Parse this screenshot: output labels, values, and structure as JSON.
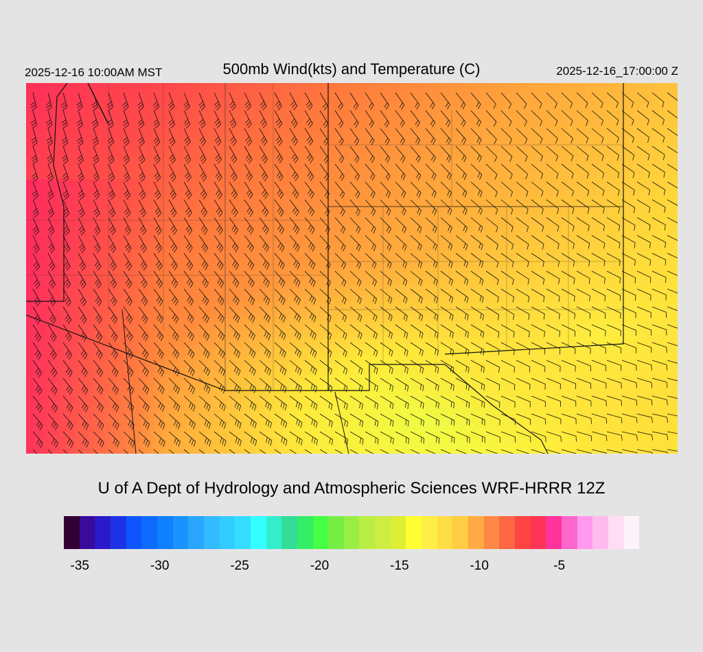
{
  "header": {
    "valid_time": "2025-12-16 10:00AM MST",
    "title": "500mb Wind(kts) and Temperature (C)",
    "init_time": "2025-12-16_17:00:00 Z"
  },
  "credit": "U of A Dept of Hydrology and Atmospheric Sciences WRF-HRRR 12Z",
  "colorbar": {
    "colors": [
      "#330033",
      "#3a0a99",
      "#2a1ac9",
      "#1f33e6",
      "#0f55ff",
      "#0f6aff",
      "#0f80ff",
      "#1a92ff",
      "#2aa6ff",
      "#33bbff",
      "#33ccff",
      "#33ddff",
      "#33ffff",
      "#33eecc",
      "#33dd99",
      "#33ee66",
      "#44ff44",
      "#77ee44",
      "#99ee44",
      "#bbee44",
      "#ccee44",
      "#ddee33",
      "#ffff33",
      "#ffee44",
      "#ffdd44",
      "#ffcc44",
      "#ffaa44",
      "#ff8844",
      "#ff6644",
      "#ff4444",
      "#ff3355",
      "#ff3399",
      "#ff66cc",
      "#ff99ee",
      "#ffbbee",
      "#ffddf5",
      "#fff3fb"
    ],
    "tick_labels": [
      "-35",
      "-30",
      "-25",
      "-20",
      "-15",
      "-10",
      "-5"
    ],
    "tick_values": [
      -35,
      -30,
      -25,
      -20,
      -15,
      -10,
      -5
    ],
    "min": -36,
    "max": 0
  },
  "map": {
    "region": "Southwestern United States",
    "field": "500mb temperature (C) with wind barbs (kts)"
  }
}
